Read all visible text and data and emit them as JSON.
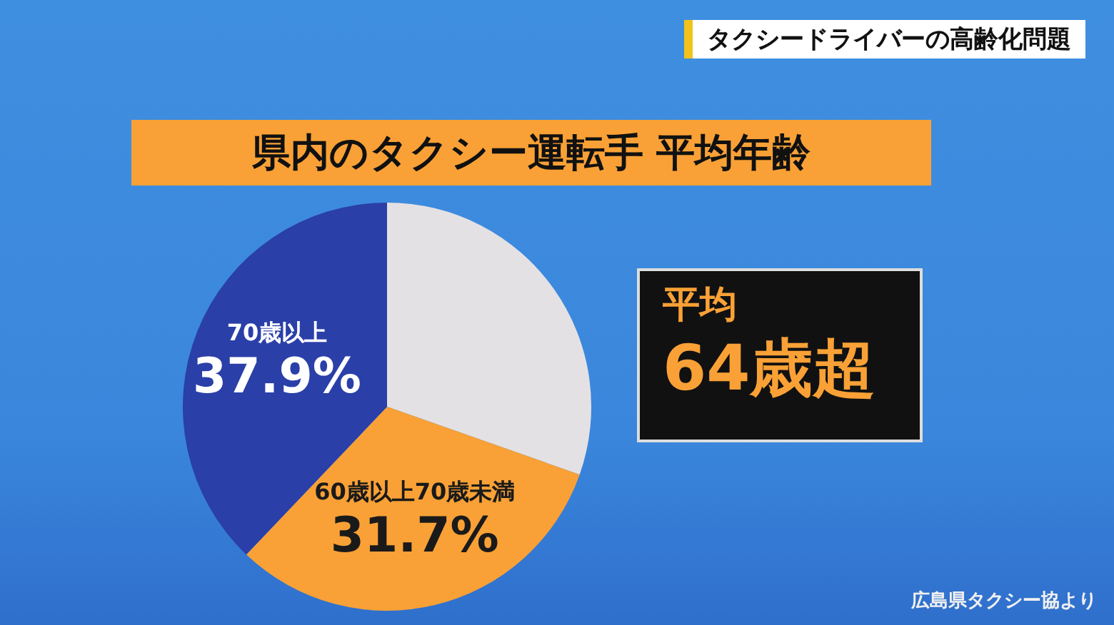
{
  "chart_data": {
    "type": "pie",
    "title": "県内のタクシー運転手 平均年齢",
    "subtitle": "タクシードライバーの高齢化問題",
    "categories": [
      null,
      "60歳以上70歳未満",
      "70歳以上"
    ],
    "values": [
      30.4,
      31.7,
      37.9
    ],
    "colors": [
      "#e4e1e4",
      "#f9a136",
      "#2a3fa8"
    ],
    "value_labels": [
      null,
      "31.7%",
      "37.9%"
    ],
    "annotations": [
      "平均",
      "64歳超",
      "広島県タクシー協より"
    ],
    "legend": false
  }
}
